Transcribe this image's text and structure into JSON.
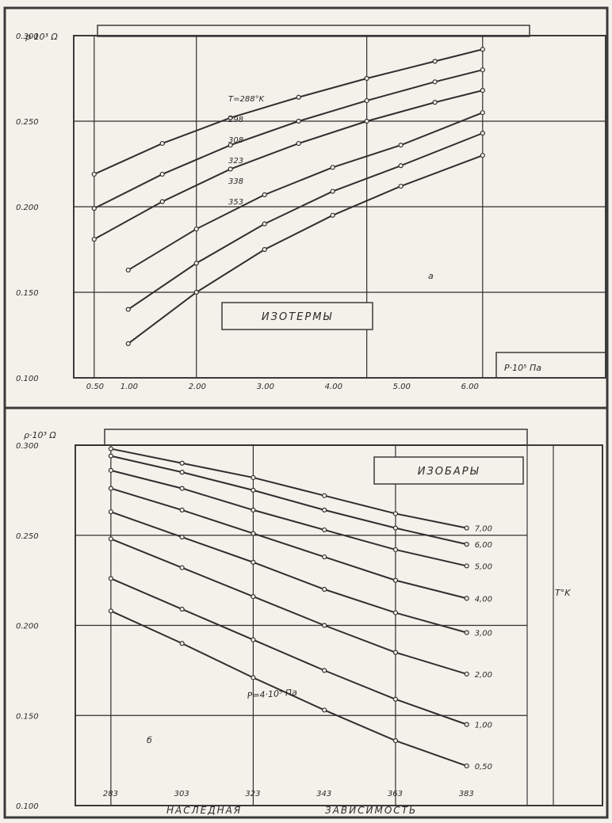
{
  "page": {
    "caption_left": "НАСЛЕДНАЯ",
    "caption_right": "ЗАВИСИМОСТЬ"
  },
  "chart_data": [
    {
      "type": "line",
      "title": "ИЗОТЕРМЫ",
      "ylabel": "ρ·10³ Ω",
      "xlabel": "P·10⁵ Па",
      "region_label": "a",
      "y_ticks": [
        "0.100",
        "0.150",
        "0.200",
        "0.250",
        "0.300"
      ],
      "x_ticks": [
        "0.50",
        "1.00",
        "2.00",
        "3.00",
        "4.00",
        "5.00",
        "6.00"
      ],
      "y_range": [
        0.1,
        0.3
      ],
      "x_range": [
        0.2,
        6.4
      ],
      "series": [
        {
          "name": "T=288°K",
          "x": [
            0.5,
            1.5,
            2.5,
            3.5,
            4.5,
            5.5,
            6.2
          ],
          "y": [
            0.219,
            0.237,
            0.252,
            0.264,
            0.275,
            0.285,
            0.292
          ]
        },
        {
          "name": "298",
          "x": [
            0.5,
            1.5,
            2.5,
            3.5,
            4.5,
            5.5,
            6.2
          ],
          "y": [
            0.199,
            0.219,
            0.236,
            0.25,
            0.262,
            0.273,
            0.28
          ]
        },
        {
          "name": "308",
          "x": [
            0.5,
            1.5,
            2.5,
            3.5,
            4.5,
            5.5,
            6.2
          ],
          "y": [
            0.181,
            0.203,
            0.222,
            0.237,
            0.25,
            0.261,
            0.268
          ]
        },
        {
          "name": "323",
          "x": [
            1.0,
            2.0,
            3.0,
            4.0,
            5.0,
            6.2
          ],
          "y": [
            0.163,
            0.187,
            0.207,
            0.223,
            0.236,
            0.255
          ]
        },
        {
          "name": "338",
          "x": [
            1.0,
            2.0,
            3.0,
            4.0,
            5.0,
            6.2
          ],
          "y": [
            0.14,
            0.167,
            0.19,
            0.209,
            0.224,
            0.243
          ]
        },
        {
          "name": "353",
          "x": [
            1.0,
            2.0,
            3.0,
            4.0,
            5.0,
            6.2
          ],
          "y": [
            0.12,
            0.15,
            0.175,
            0.195,
            0.212,
            0.23
          ]
        }
      ]
    },
    {
      "type": "line",
      "title": "ИЗОБАРЫ",
      "ylabel": "ρ·10³ Ω",
      "xlabel": "T°K",
      "annotation": "P=4·10⁵ Па",
      "region_label": "б",
      "y_ticks": [
        "0.100",
        "0.150",
        "0.200",
        "0.250",
        "0.300"
      ],
      "x_ticks": [
        "283",
        "303",
        "323",
        "343",
        "363",
        "383"
      ],
      "y_range": [
        0.1,
        0.3
      ],
      "x_range": [
        273,
        400
      ],
      "series": [
        {
          "name": "7,00",
          "x": [
            283,
            303,
            323,
            343,
            363,
            383
          ],
          "y": [
            0.298,
            0.29,
            0.282,
            0.272,
            0.262,
            0.254
          ]
        },
        {
          "name": "6,00",
          "x": [
            283,
            303,
            323,
            343,
            363,
            383
          ],
          "y": [
            0.294,
            0.285,
            0.275,
            0.264,
            0.254,
            0.245
          ]
        },
        {
          "name": "5,00",
          "x": [
            283,
            303,
            323,
            343,
            363,
            383
          ],
          "y": [
            0.286,
            0.276,
            0.264,
            0.253,
            0.242,
            0.233
          ]
        },
        {
          "name": "4,00",
          "x": [
            283,
            303,
            323,
            343,
            363,
            383
          ],
          "y": [
            0.276,
            0.264,
            0.251,
            0.238,
            0.225,
            0.215
          ]
        },
        {
          "name": "3,00",
          "x": [
            283,
            303,
            323,
            343,
            363,
            383
          ],
          "y": [
            0.263,
            0.249,
            0.235,
            0.22,
            0.207,
            0.196
          ]
        },
        {
          "name": "2,00",
          "x": [
            283,
            303,
            323,
            343,
            363,
            383
          ],
          "y": [
            0.248,
            0.232,
            0.216,
            0.2,
            0.185,
            0.173
          ]
        },
        {
          "name": "1,00",
          "x": [
            283,
            303,
            323,
            343,
            363,
            383
          ],
          "y": [
            0.226,
            0.209,
            0.192,
            0.175,
            0.159,
            0.145
          ]
        },
        {
          "name": "0,50",
          "x": [
            283,
            303,
            323,
            343,
            363,
            383
          ],
          "y": [
            0.208,
            0.19,
            0.171,
            0.153,
            0.136,
            0.122
          ]
        }
      ]
    }
  ]
}
